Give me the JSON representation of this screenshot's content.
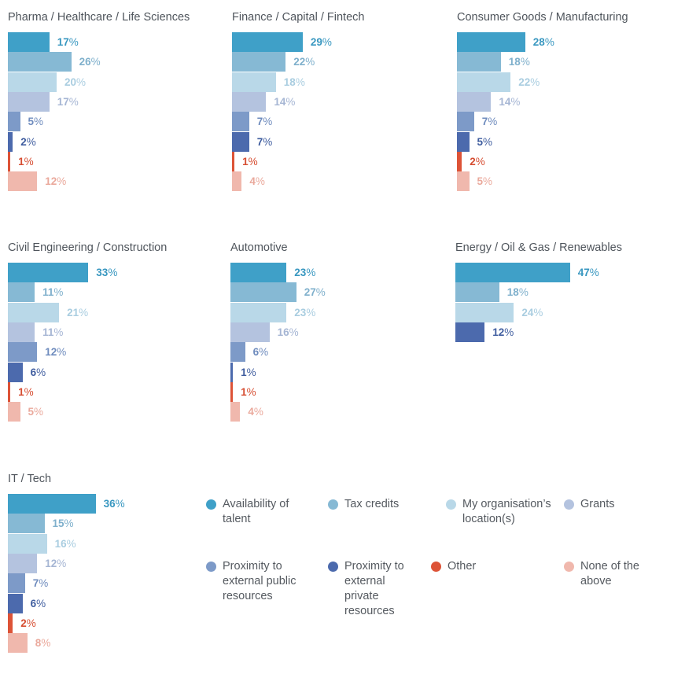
{
  "colors": {
    "availability_of_talent": "#3fa0c8",
    "tax_credits": "#86b9d4",
    "my_organisations_location": "#b9d8e8",
    "grants": "#b4c3df",
    "proximity_public": "#7d9ac8",
    "proximity_private": "#4c6aad",
    "other": "#dd5337",
    "none_of_the_above": "#f0b8ad"
  },
  "legend": [
    {
      "key": "availability_of_talent",
      "label": "Availability of talent",
      "icon": "circle-icon"
    },
    {
      "key": "tax_credits",
      "label": "Tax credits",
      "icon": "circle-icon"
    },
    {
      "key": "my_organisations_location",
      "label": "My organisation’s location(s)",
      "icon": "circle-icon"
    },
    {
      "key": "grants",
      "label": "Grants",
      "icon": "circle-icon"
    },
    {
      "key": "proximity_public",
      "label": "Proximity to external public resources",
      "icon": "circle-icon"
    },
    {
      "key": "proximity_private",
      "label": "Proximity to external private resources",
      "icon": "circle-icon"
    },
    {
      "key": "other",
      "label": "Other",
      "icon": "circle-icon"
    },
    {
      "key": "none_of_the_above",
      "label": "None of the above",
      "icon": "circle-icon"
    }
  ],
  "chart_data": [
    {
      "type": "bar",
      "orientation": "horizontal",
      "title": "Pharma / Healthcare / Life Sciences",
      "unit": "%",
      "categories": [
        "availability_of_talent",
        "tax_credits",
        "my_organisations_location",
        "grants",
        "proximity_public",
        "proximity_private",
        "other",
        "none_of_the_above"
      ],
      "values": [
        17,
        26,
        20,
        17,
        5,
        2,
        1,
        12
      ]
    },
    {
      "type": "bar",
      "orientation": "horizontal",
      "title": "Finance / Capital / Fintech",
      "unit": "%",
      "categories": [
        "availability_of_talent",
        "tax_credits",
        "my_organisations_location",
        "grants",
        "proximity_public",
        "proximity_private",
        "other",
        "none_of_the_above"
      ],
      "values": [
        29,
        22,
        18,
        14,
        7,
        7,
        1,
        4
      ]
    },
    {
      "type": "bar",
      "orientation": "horizontal",
      "title": "Consumer Goods / Manufacturing",
      "unit": "%",
      "categories": [
        "availability_of_talent",
        "tax_credits",
        "my_organisations_location",
        "grants",
        "proximity_public",
        "proximity_private",
        "other",
        "none_of_the_above"
      ],
      "values": [
        28,
        18,
        22,
        14,
        7,
        5,
        2,
        5
      ]
    },
    {
      "type": "bar",
      "orientation": "horizontal",
      "title": "Civil Engineering / Construction",
      "unit": "%",
      "categories": [
        "availability_of_talent",
        "tax_credits",
        "my_organisations_location",
        "grants",
        "proximity_public",
        "proximity_private",
        "other",
        "none_of_the_above"
      ],
      "values": [
        33,
        11,
        21,
        11,
        12,
        6,
        1,
        5
      ]
    },
    {
      "type": "bar",
      "orientation": "horizontal",
      "title": "Automotive",
      "unit": "%",
      "categories": [
        "availability_of_talent",
        "tax_credits",
        "my_organisations_location",
        "grants",
        "proximity_public",
        "proximity_private",
        "other",
        "none_of_the_above"
      ],
      "values": [
        23,
        27,
        23,
        16,
        6,
        1,
        1,
        4
      ]
    },
    {
      "type": "bar",
      "orientation": "horizontal",
      "title": "Energy / Oil & Gas / Renewables",
      "unit": "%",
      "categories": [
        "availability_of_talent",
        "tax_credits",
        "my_organisations_location",
        "proximity_private"
      ],
      "values": [
        47,
        18,
        24,
        12
      ]
    },
    {
      "type": "bar",
      "orientation": "horizontal",
      "title": "IT / Tech",
      "unit": "%",
      "categories": [
        "availability_of_talent",
        "tax_credits",
        "my_organisations_location",
        "grants",
        "proximity_public",
        "proximity_private",
        "other",
        "none_of_the_above"
      ],
      "values": [
        36,
        15,
        16,
        12,
        7,
        6,
        2,
        8
      ]
    }
  ]
}
